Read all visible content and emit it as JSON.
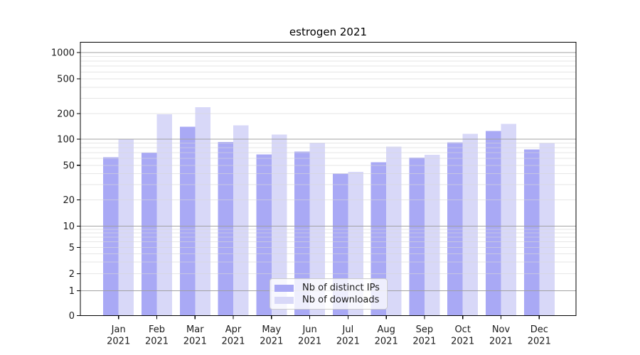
{
  "chart_data": {
    "type": "bar",
    "title": "estrogen 2021",
    "categories": [
      "Jan 2021",
      "Feb 2021",
      "Mar 2021",
      "Apr 2021",
      "May 2021",
      "Jun 2021",
      "Jul 2021",
      "Aug 2021",
      "Sep 2021",
      "Oct 2021",
      "Nov 2021",
      "Dec 2021"
    ],
    "x_tick_top_labels": [
      "Jan",
      "Feb",
      "Mar",
      "Apr",
      "May",
      "Jun",
      "Jul",
      "Aug",
      "Sep",
      "Oct",
      "Nov",
      "Dec"
    ],
    "x_tick_bottom_label": "2021",
    "series": [
      {
        "name": "Nb of distinct IPs",
        "color": "#a9a9f5",
        "values": [
          62,
          70,
          140,
          93,
          67,
          72,
          40,
          54,
          61,
          92,
          125,
          76
        ]
      },
      {
        "name": "Nb of downloads",
        "color": "#d8d8f8",
        "values": [
          100,
          196,
          236,
          145,
          113,
          91,
          42,
          82,
          66,
          116,
          151,
          90
        ]
      }
    ],
    "yscale": "symlog",
    "yticks": [
      0,
      1,
      2,
      5,
      10,
      20,
      50,
      100,
      200,
      500,
      1000
    ],
    "ylim": [
      0,
      1300
    ],
    "xlabel": "",
    "ylabel": "",
    "grid": true,
    "legend_position": "lower center inside plot",
    "colors": {
      "major_grid": "rgba(158,158,158,0.95)",
      "minor_grid": "rgba(215,215,215,0.62)",
      "spine": "#000000",
      "tick_label": "#1a1a1a",
      "title": "#000000"
    }
  }
}
